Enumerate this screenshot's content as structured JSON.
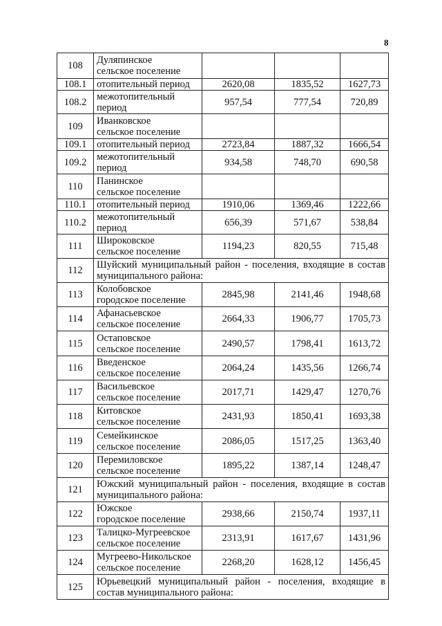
{
  "page_number": "8",
  "rows": [
    {
      "num": "108",
      "name": [
        "Дуляпинское",
        "сельское поселение"
      ],
      "values": [
        "",
        "",
        ""
      ]
    },
    {
      "num": "108.1",
      "name": [
        "отопительный период"
      ],
      "values": [
        "2620,08",
        "1835,52",
        "1627,73"
      ]
    },
    {
      "num": "108.2",
      "name": [
        "межотопительный",
        "период"
      ],
      "values": [
        "957,54",
        "777,54",
        "720,89"
      ]
    },
    {
      "num": "109",
      "name": [
        "Иванковское",
        "сельское поселение"
      ],
      "values": [
        "",
        "",
        ""
      ]
    },
    {
      "num": "109.1",
      "name": [
        "отопительный период"
      ],
      "values": [
        "2723,84",
        "1887,32",
        "1666,54"
      ]
    },
    {
      "num": "109.2",
      "name": [
        "межотопительный",
        "период"
      ],
      "values": [
        "934,58",
        "748,70",
        "690,58"
      ]
    },
    {
      "num": "110",
      "name": [
        "Панинское",
        "сельское поселение"
      ],
      "values": [
        "",
        "",
        ""
      ]
    },
    {
      "num": "110.1",
      "name": [
        "отопительный период"
      ],
      "values": [
        "1910,06",
        "1369,46",
        "1222,66"
      ]
    },
    {
      "num": "110.2",
      "name": [
        "межотопительный",
        "период"
      ],
      "values": [
        "656,39",
        "571,67",
        "538,84"
      ]
    },
    {
      "num": "111",
      "name": [
        "Широковское",
        "сельское поселение"
      ],
      "values": [
        "1194,23",
        "820,55",
        "715,48"
      ]
    },
    {
      "num": "112",
      "span": [
        "Шуйский муниципальный район - поселения, входящие в состав",
        "муниципального района:"
      ]
    },
    {
      "num": "113",
      "name": [
        "Колобовское",
        "городское поселение"
      ],
      "values": [
        "2845,98",
        "2141,46",
        "1948,68"
      ]
    },
    {
      "num": "114",
      "name": [
        "Афанасьевское",
        "сельское поселение"
      ],
      "values": [
        "2664,33",
        "1906,77",
        "1705,73"
      ]
    },
    {
      "num": "115",
      "name": [
        "Остаповское",
        "сельское поселение"
      ],
      "values": [
        "2490,57",
        "1798,41",
        "1613,72"
      ]
    },
    {
      "num": "116",
      "name": [
        "Введенское",
        "сельское поселение"
      ],
      "values": [
        "2064,24",
        "1435,56",
        "1266,74"
      ]
    },
    {
      "num": "117",
      "name": [
        "Васильевское",
        "сельское поселение"
      ],
      "values": [
        "2017,71",
        "1429,47",
        "1270,76"
      ]
    },
    {
      "num": "118",
      "name": [
        "Китовское",
        "сельское поселение"
      ],
      "values": [
        "2431,93",
        "1850,41",
        "1693,38"
      ]
    },
    {
      "num": "119",
      "name": [
        "Семейкинское",
        "сельское поселение"
      ],
      "values": [
        "2086,05",
        "1517,25",
        "1363,40"
      ]
    },
    {
      "num": "120",
      "name": [
        "Перемиловское",
        "сельское поселение"
      ],
      "values": [
        "1895,22",
        "1387,14",
        "1248,47"
      ]
    },
    {
      "num": "121",
      "span": [
        "Южский муниципальный район - поселения, входящие в состав",
        "муниципального района:"
      ]
    },
    {
      "num": "122",
      "name": [
        "Южское",
        "городское поселение"
      ],
      "values": [
        "2938,66",
        "2150,74",
        "1937,11"
      ]
    },
    {
      "num": "123",
      "name": [
        "Талицко-Мугреевское",
        "сельское поселение"
      ],
      "values": [
        "2313,91",
        "1617,67",
        "1431,96"
      ]
    },
    {
      "num": "124",
      "name": [
        "Мугреево-Никольское",
        "сельское поселение"
      ],
      "values": [
        "2268,20",
        "1628,12",
        "1456,45"
      ]
    },
    {
      "num": "125",
      "span": [
        "Юрьевецкий муниципальный район - поселения, входящие в",
        "состав муниципального района:"
      ]
    }
  ]
}
